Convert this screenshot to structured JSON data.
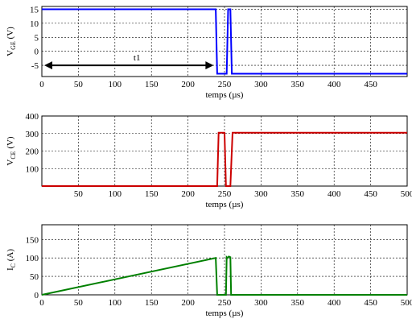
{
  "chart_data": [
    {
      "type": "line",
      "id": "vge",
      "xlabel": "temps (µs)",
      "ylabel_main": "V",
      "ylabel_sub": "GE",
      "ylabel_unit": " (V)",
      "xlim": [
        0,
        500
      ],
      "ylim": [
        -9,
        16
      ],
      "xticks": [
        0,
        50,
        100,
        150,
        200,
        250,
        300,
        350,
        400,
        450
      ],
      "yticks": [
        -5,
        0,
        5,
        10,
        15
      ],
      "color": "#0000ff",
      "series": [
        {
          "x": [
            0,
            238,
            240,
            253,
            255,
            258,
            260,
            500
          ],
          "y": [
            15,
            15,
            -8,
            -8,
            15,
            15,
            -8,
            -8
          ]
        }
      ],
      "annotation": {
        "text": "t1",
        "x_from": 0,
        "x_to": 235,
        "y": -5
      }
    },
    {
      "type": "line",
      "id": "vce",
      "xlabel": "temps (µs)",
      "ylabel_main": "V",
      "ylabel_sub": "CE",
      "ylabel_unit": " (V)",
      "xlim": [
        0,
        500
      ],
      "ylim": [
        0,
        400
      ],
      "xticks": [
        50,
        100,
        150,
        200,
        250,
        300,
        350,
        400,
        450,
        500
      ],
      "yticks": [
        100,
        200,
        300,
        400
      ],
      "color": "#cc0000",
      "series": [
        {
          "x": [
            0,
            240,
            242,
            250,
            252,
            258,
            261,
            500
          ],
          "y": [
            0,
            0,
            305,
            305,
            0,
            0,
            305,
            305
          ]
        }
      ]
    },
    {
      "type": "line",
      "id": "ic",
      "xlabel": "temps (µs)",
      "ylabel_main": "I",
      "ylabel_sub": "C",
      "ylabel_unit": " (A)",
      "xlim": [
        0,
        500
      ],
      "ylim": [
        0,
        190
      ],
      "xticks": [
        0,
        50,
        100,
        150,
        200,
        250,
        300,
        350,
        400,
        450,
        500
      ],
      "yticks": [
        0,
        50,
        100,
        150
      ],
      "color": "#008000",
      "series": [
        {
          "x": [
            0,
            238,
            240,
            252,
            253,
            254,
            256,
            258,
            259,
            261,
            500
          ],
          "y": [
            0,
            100,
            0,
            0,
            102,
            100,
            104,
            102,
            0,
            0,
            0
          ]
        }
      ]
    }
  ]
}
